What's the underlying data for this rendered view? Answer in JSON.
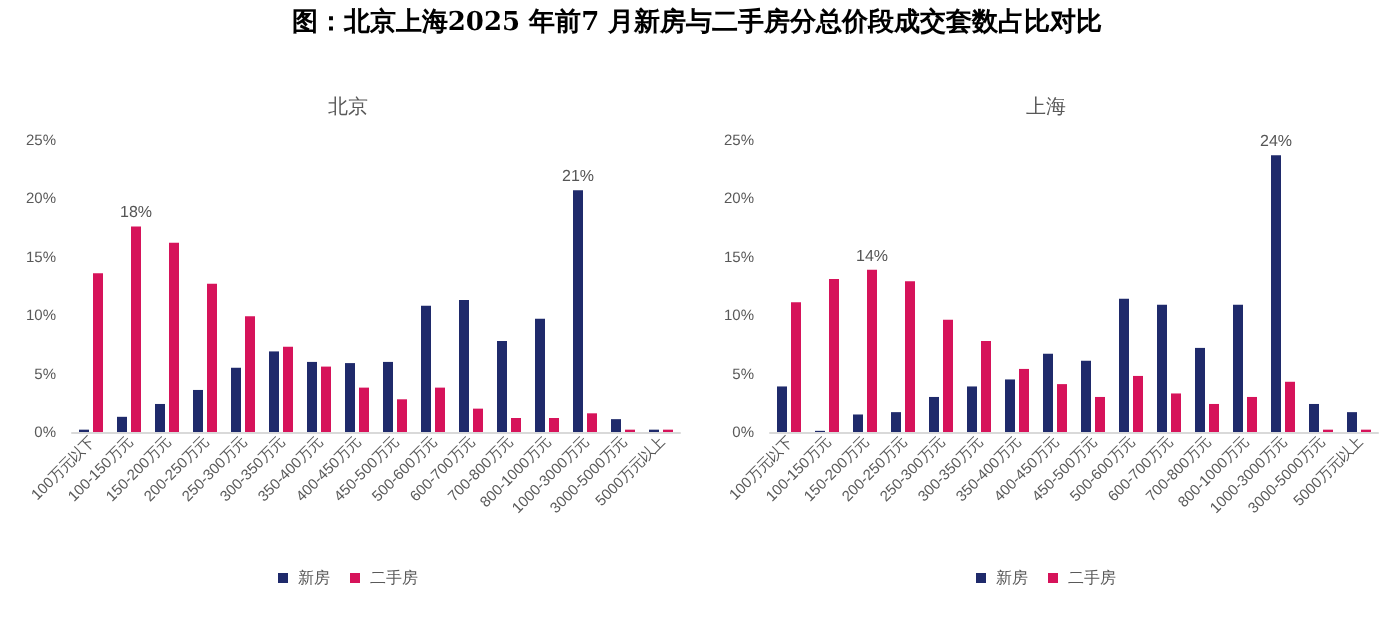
{
  "chart_data": [
    {
      "type": "bar",
      "title": "北京",
      "annotations": [
        "图：北京上海2025 年前7 月新房与二手房分总价段成交套数占比对比"
      ],
      "categories": [
        "100万元以下",
        "100-150万元",
        "150-200万元",
        "200-250万元",
        "250-300万元",
        "300-350万元",
        "350-400万元",
        "400-450万元",
        "450-500万元",
        "500-600万元",
        "600-700万元",
        "700-800万元",
        "800-1000万元",
        "1000-3000万元",
        "3000-5000万元",
        "5000万元以上"
      ],
      "series": [
        {
          "name": "新房",
          "color": "#1f2a6b",
          "values": [
            0.2,
            1.3,
            2.4,
            3.6,
            5.5,
            6.9,
            6.0,
            5.9,
            6.0,
            10.8,
            11.3,
            7.8,
            9.7,
            20.7,
            1.1,
            0.2
          ],
          "value_labels": [
            null,
            null,
            null,
            null,
            null,
            null,
            null,
            null,
            null,
            null,
            null,
            null,
            null,
            "21%",
            null,
            null
          ]
        },
        {
          "name": "二手房",
          "color": "#d6135a",
          "values": [
            13.6,
            17.6,
            16.2,
            12.7,
            9.9,
            7.3,
            5.6,
            3.8,
            2.8,
            3.8,
            2.0,
            1.2,
            1.2,
            1.6,
            0.2,
            0.2
          ],
          "value_labels": [
            null,
            "18%",
            null,
            null,
            null,
            null,
            null,
            null,
            null,
            null,
            null,
            null,
            null,
            null,
            null,
            null
          ]
        }
      ],
      "ylim": [
        0,
        25
      ],
      "yticks": [
        {
          "value": 0,
          "label": "0%"
        },
        {
          "value": 5,
          "label": "5%"
        },
        {
          "value": 10,
          "label": "10%"
        },
        {
          "value": 15,
          "label": "15%"
        },
        {
          "value": 20,
          "label": "20%"
        },
        {
          "value": 25,
          "label": "25%"
        }
      ],
      "grid": false,
      "legend": "bottom"
    },
    {
      "type": "bar",
      "title": "上海",
      "categories": [
        "100万元以下",
        "100-150万元",
        "150-200万元",
        "200-250万元",
        "250-300万元",
        "300-350万元",
        "350-400万元",
        "400-450万元",
        "450-500万元",
        "500-600万元",
        "600-700万元",
        "700-800万元",
        "800-1000万元",
        "1000-3000万元",
        "3000-5000万元",
        "5000万元以上"
      ],
      "series": [
        {
          "name": "新房",
          "color": "#1f2a6b",
          "values": [
            3.9,
            0.1,
            1.5,
            1.7,
            3.0,
            3.9,
            4.5,
            6.7,
            6.1,
            11.4,
            10.9,
            7.2,
            10.9,
            23.7,
            2.4,
            1.7
          ],
          "value_labels": [
            null,
            null,
            null,
            null,
            null,
            null,
            null,
            null,
            null,
            null,
            null,
            null,
            null,
            "24%",
            null,
            null
          ]
        },
        {
          "name": "二手房",
          "color": "#d6135a",
          "values": [
            11.1,
            13.1,
            13.9,
            12.9,
            9.6,
            7.8,
            5.4,
            4.1,
            3.0,
            4.8,
            3.3,
            2.4,
            3.0,
            4.3,
            0.2,
            0.2
          ],
          "value_labels": [
            null,
            null,
            "14%",
            null,
            null,
            null,
            null,
            null,
            null,
            null,
            null,
            null,
            null,
            null,
            null,
            null
          ]
        }
      ],
      "ylim": [
        0,
        25
      ],
      "yticks": [
        {
          "value": 0,
          "label": "0%"
        },
        {
          "value": 5,
          "label": "5%"
        },
        {
          "value": 10,
          "label": "10%"
        },
        {
          "value": 15,
          "label": "15%"
        },
        {
          "value": 20,
          "label": "20%"
        },
        {
          "value": 25,
          "label": "25%"
        }
      ],
      "grid": false,
      "legend": "bottom"
    }
  ]
}
